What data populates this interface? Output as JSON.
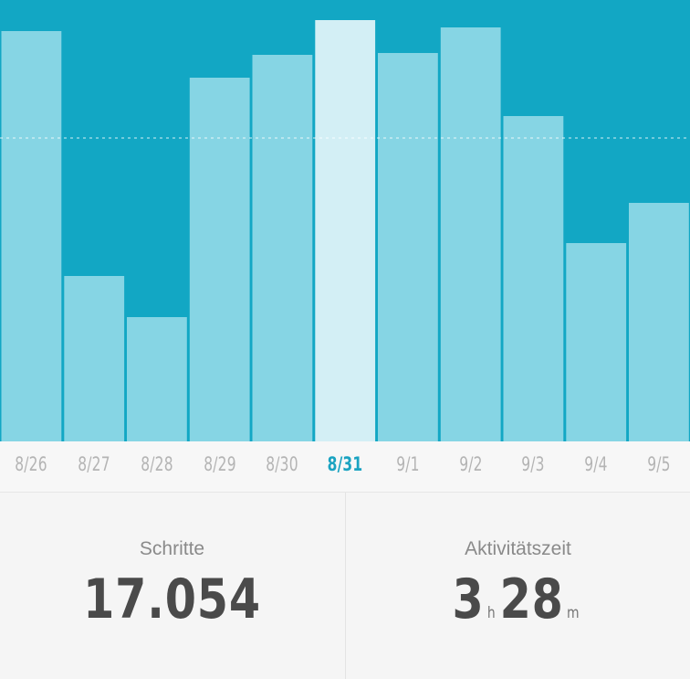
{
  "colors": {
    "background": "#12a7c4",
    "bar": "#86d5e4",
    "bar_selected": "#d3eff5",
    "tick": "#b4b4b4",
    "tick_selected": "#1aa3c1",
    "value_text": "#4a4a4a",
    "label_text": "#8a8a8a"
  },
  "chart_data": {
    "type": "bar",
    "categories": [
      "8/26",
      "8/27",
      "8/28",
      "8/29",
      "8/30",
      "8/31",
      "9/1",
      "9/2",
      "9/3",
      "9/4",
      "9/5"
    ],
    "values": [
      449,
      181,
      136,
      398,
      423,
      461,
      425,
      453,
      356,
      217,
      261
    ],
    "selected_index": 5,
    "ylim": [
      0,
      483
    ],
    "reference_line": 332,
    "grid": false,
    "title": "",
    "xlabel": "",
    "ylabel": ""
  },
  "stats": {
    "steps": {
      "label": "Schritte",
      "value": "17.054"
    },
    "activity": {
      "label": "Aktivitätszeit",
      "hours": "3",
      "hours_unit": "h",
      "minutes": "28",
      "minutes_unit": "m"
    }
  }
}
